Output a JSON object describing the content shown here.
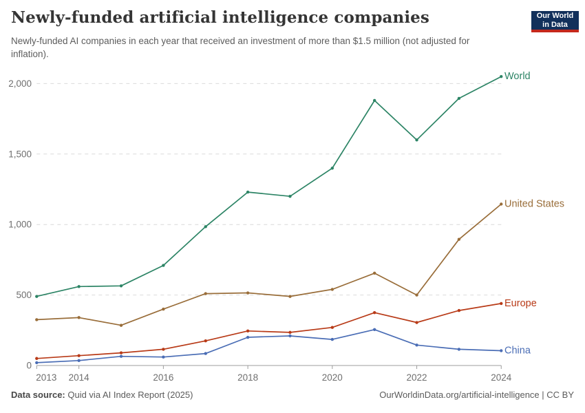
{
  "header": {
    "title": "Newly-funded artificial intelligence companies",
    "subtitle": "Newly-funded AI companies in each year that received an investment of more than $1.5 million (not adjusted for inflation)."
  },
  "logo": {
    "line1": "Our World",
    "line2": "in Data",
    "bg_color": "#12305b",
    "bar_color": "#c5281c"
  },
  "footer": {
    "source_label": "Data source:",
    "source_text": " Quid via AI Index Report (2025)",
    "credit": "OurWorldinData.org/artificial-intelligence | CC BY"
  },
  "chart_data": {
    "type": "line",
    "title": "Newly-funded artificial intelligence companies",
    "x": [
      2013,
      2014,
      2015,
      2016,
      2017,
      2018,
      2019,
      2020,
      2021,
      2022,
      2023,
      2024
    ],
    "series": [
      {
        "name": "World",
        "color": "#2C8465",
        "values": [
          490,
          560,
          565,
          710,
          985,
          1230,
          1200,
          1400,
          1880,
          1600,
          1895,
          2050
        ]
      },
      {
        "name": "United States",
        "color": "#996D39",
        "values": [
          325,
          340,
          285,
          400,
          510,
          515,
          490,
          540,
          655,
          500,
          895,
          1145
        ]
      },
      {
        "name": "Europe",
        "color": "#B83A17",
        "values": [
          50,
          70,
          90,
          115,
          175,
          245,
          235,
          270,
          375,
          305,
          390,
          440
        ]
      },
      {
        "name": "China",
        "color": "#4A6DB5",
        "values": [
          20,
          35,
          65,
          60,
          85,
          200,
          210,
          185,
          255,
          145,
          115,
          105
        ]
      }
    ],
    "ylim": [
      0,
      2000
    ],
    "yticks": [
      0,
      500,
      1000,
      1500,
      2000
    ],
    "ytick_labels": [
      "0",
      "500",
      "1,000",
      "1,500",
      "2,000"
    ],
    "xticks": [
      2013,
      2014,
      2016,
      2018,
      2020,
      2022,
      2024
    ],
    "xlabel": "",
    "ylabel": "",
    "grid": "horizontal-dashed",
    "legend_position": "line-end-labels",
    "marker": "circle"
  }
}
